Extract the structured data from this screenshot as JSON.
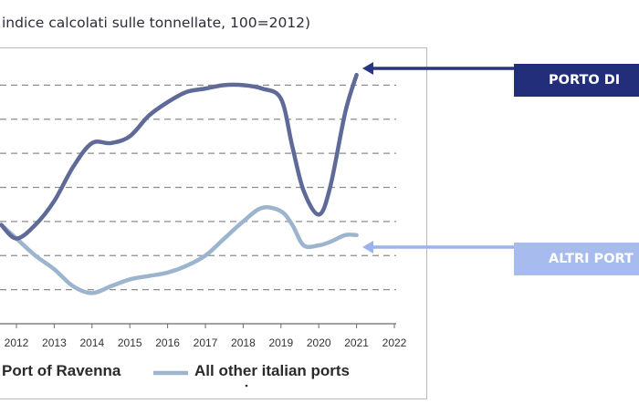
{
  "subtitle": "indice calcolati sulle tonnellate, 100=2012)",
  "callouts": {
    "ravenna": "PORTO DI",
    "altri": "ALTRI PORT"
  },
  "colors": {
    "ravenna_series": "#5f6a98",
    "other_series": "#9db4cf",
    "grid": "#8c8c8c",
    "callout_ravenna_bg": "#232e7a",
    "callout_altri_bg": "#a7bbef",
    "arrow_ravenna": "#283582",
    "arrow_altri": "#9cb2ec"
  },
  "chart_data": {
    "type": "line",
    "title": "",
    "xlabel": "",
    "ylabel": "",
    "grid": true,
    "legend_position": "bottom",
    "x": [
      2011.6,
      2012,
      2012.5,
      2013,
      2013.5,
      2014,
      2014.5,
      2015,
      2015.5,
      2016,
      2016.5,
      2017,
      2017.5,
      2018,
      2018.5,
      2019,
      2019.3,
      2019.6,
      2020,
      2020.3,
      2020.7,
      2021
    ],
    "xticks": [
      "2012",
      "2013",
      "2014",
      "2015",
      "2016",
      "2017",
      "2018",
      "2019",
      "2020",
      "2021",
      "2022"
    ],
    "tick_values": [
      2012,
      2013,
      2014,
      2015,
      2016,
      2017,
      2018,
      2019,
      2020,
      2021,
      2022
    ],
    "xlim": [
      2011.5,
      2022
    ],
    "ylim": [
      0,
      8
    ],
    "series": [
      {
        "name": "Port of Ravenna",
        "values": [
          2.9,
          2.5,
          2.9,
          3.6,
          4.6,
          5.3,
          5.3,
          5.5,
          6.1,
          6.5,
          6.8,
          6.9,
          7.0,
          7.0,
          6.9,
          6.6,
          5.2,
          3.9,
          3.2,
          4.0,
          6.2,
          7.3
        ]
      },
      {
        "name": "All other italian ports",
        "values": [
          2.9,
          2.5,
          2.0,
          1.6,
          1.1,
          0.9,
          1.1,
          1.3,
          1.4,
          1.5,
          1.7,
          2.0,
          2.5,
          3.0,
          3.4,
          3.3,
          2.9,
          2.3,
          2.3,
          2.4,
          2.6,
          2.6
        ]
      }
    ]
  }
}
